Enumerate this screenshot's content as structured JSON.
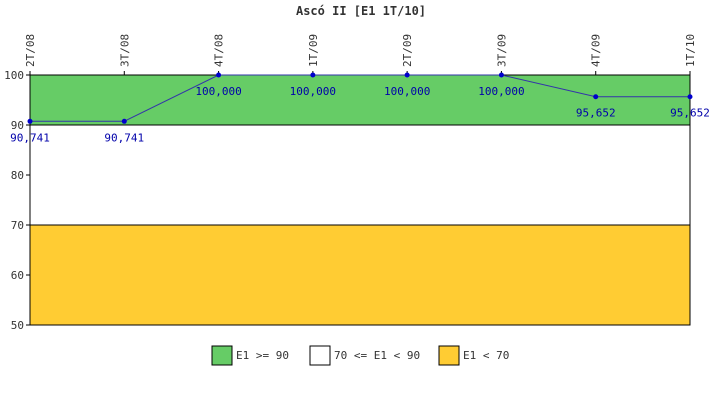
{
  "chart_data": {
    "type": "line",
    "title": "Ascó II [E1 1T/10]",
    "categories": [
      "2T/08",
      "3T/08",
      "4T/08",
      "1T/09",
      "2T/09",
      "3T/09",
      "4T/09",
      "1T/10"
    ],
    "series": [
      {
        "values": [
          90.741,
          90.741,
          100,
          100,
          100,
          100,
          95.652,
          95.652
        ],
        "labels": [
          "90,741",
          "90,741",
          "100,000",
          "100,000",
          "100,000",
          "100,000",
          "95,652",
          "95,652"
        ],
        "color": "#3333aa",
        "marker_color": "#0000cc"
      }
    ],
    "ylim": [
      50,
      100
    ],
    "yticks": [
      "50",
      "60",
      "70",
      "80",
      "90",
      "100"
    ],
    "bands": [
      {
        "from": 90,
        "to": 100,
        "color": "#66cc66",
        "label": "E1 >= 90"
      },
      {
        "from": 70,
        "to": 90,
        "color": "#ffffff",
        "label": "70 <= E1 < 90"
      },
      {
        "from": 50,
        "to": 70,
        "color": "#ffcc33",
        "label": "E1 < 70"
      }
    ],
    "legend_position": "bottom-center",
    "grid": false
  }
}
